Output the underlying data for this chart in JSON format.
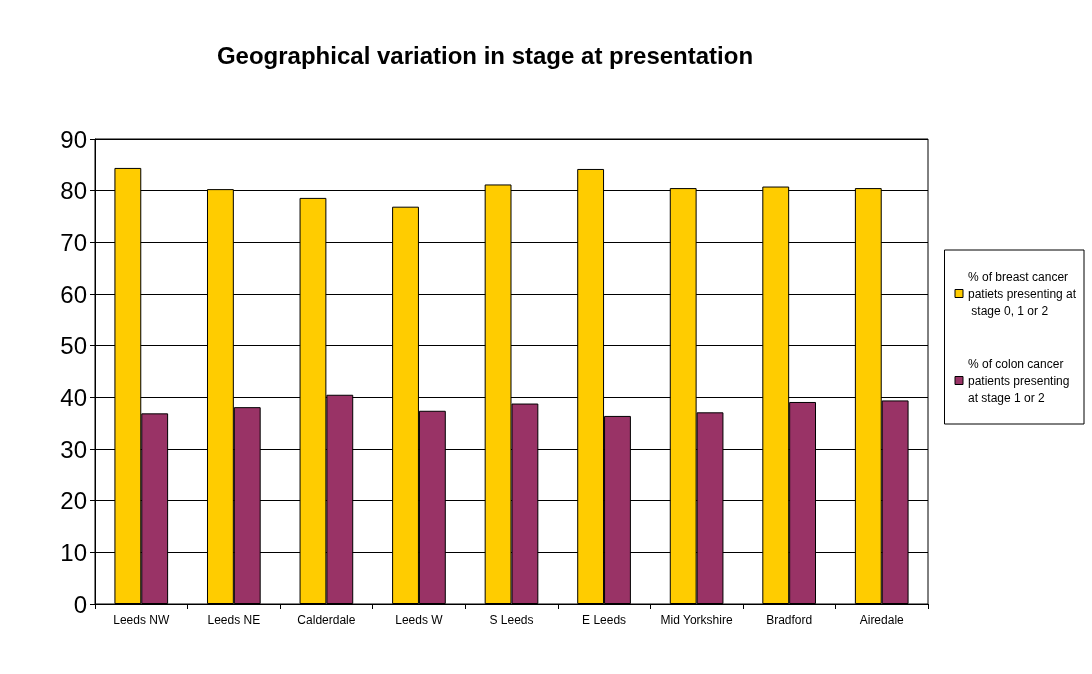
{
  "chart_data": {
    "type": "bar",
    "title": "Geographical variation in stage at presentation",
    "categories": [
      "Leeds NW",
      "Leeds NE",
      "Calderdale",
      "Leeds W",
      "S Leeds",
      "E Leeds",
      "Mid Yorkshire",
      "Bradford",
      "Airedale"
    ],
    "series": [
      {
        "name": "% of breast cancer patiets presenting at stage 0, 1 or 2",
        "color": "#ffcc00",
        "values": [
          84.4,
          80.3,
          78.6,
          76.9,
          81.2,
          84.2,
          80.5,
          80.8,
          80.5
        ]
      },
      {
        "name": "% of colon cancer patients presenting at stage 1 or 2",
        "color": "#993366",
        "values": [
          36.9,
          38.1,
          40.5,
          37.4,
          38.8,
          36.4,
          37.1,
          39.1,
          39.4
        ]
      }
    ],
    "ylim": [
      0,
      90
    ],
    "yticks": [
      0,
      10,
      20,
      30,
      40,
      50,
      60,
      70,
      80,
      90
    ],
    "grid": "y",
    "legend": "right"
  }
}
